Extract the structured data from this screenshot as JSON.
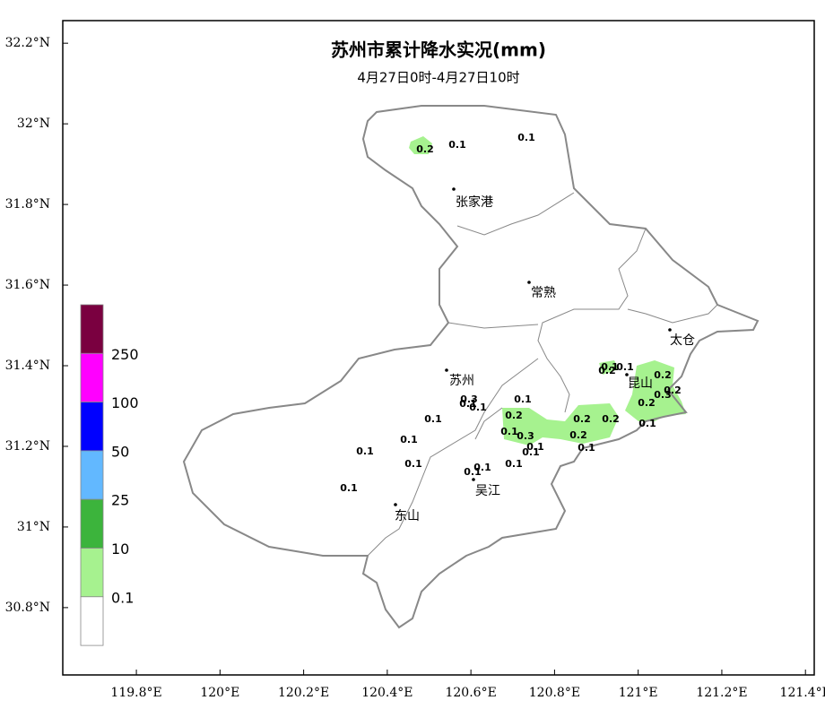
{
  "header": {
    "title": "苏州市累计降水实况(mm)",
    "subtitle": "4月27日0时-4月27日10时"
  },
  "map": {
    "xlim": [
      119.624,
      121.421
    ],
    "ylim": [
      30.633,
      32.256
    ],
    "xticks": [
      {
        "value": 119.8,
        "label": "119.8°E"
      },
      {
        "value": 120,
        "label": "120°E"
      },
      {
        "value": 120.2,
        "label": "120.2°E"
      },
      {
        "value": 120.4,
        "label": "120.4°E"
      },
      {
        "value": 120.6,
        "label": "120.6°E"
      },
      {
        "value": 120.8,
        "label": "120.8°E"
      },
      {
        "value": 121,
        "label": "121°E"
      },
      {
        "value": 121.2,
        "label": "121.2°E"
      },
      {
        "value": 121.4,
        "label": "121.4°E"
      }
    ],
    "yticks": [
      {
        "value": 32.2,
        "label": "32.2°N"
      },
      {
        "value": 32,
        "label": "32°N"
      },
      {
        "value": 31.8,
        "label": "31.8°N"
      },
      {
        "value": 31.6,
        "label": "31.6°N"
      },
      {
        "value": 31.4,
        "label": "31.4°N"
      },
      {
        "value": 31.2,
        "label": "31.2°N"
      },
      {
        "value": 31,
        "label": "31°N"
      },
      {
        "value": 30.8,
        "label": "30.8°N"
      }
    ]
  },
  "legend": {
    "colors": [
      "#7a0040",
      "#ff00ff",
      "#0000ff",
      "#62b8ff",
      "#3cb43c",
      "#a6f28f",
      "#ffffff"
    ],
    "levels": [
      250,
      100,
      50,
      25,
      10,
      0.1
    ]
  },
  "cities": [
    "张家港",
    "常熟",
    "太仓",
    "苏州",
    "昆山",
    "吴江",
    "东山"
  ],
  "stations": [
    0.2,
    0.1,
    0.1,
    0.3,
    0.1,
    0.1,
    0.1,
    0.1,
    0.2,
    0.1,
    0.1,
    0.1,
    0.1,
    0.1,
    0.3,
    0.1,
    0.1,
    0.1,
    0.1,
    0.1,
    0.2,
    0.2,
    0.2,
    0.1,
    0.2,
    0.1,
    0.1,
    0.2,
    0.2,
    0.3,
    0.2,
    0.1
  ]
}
